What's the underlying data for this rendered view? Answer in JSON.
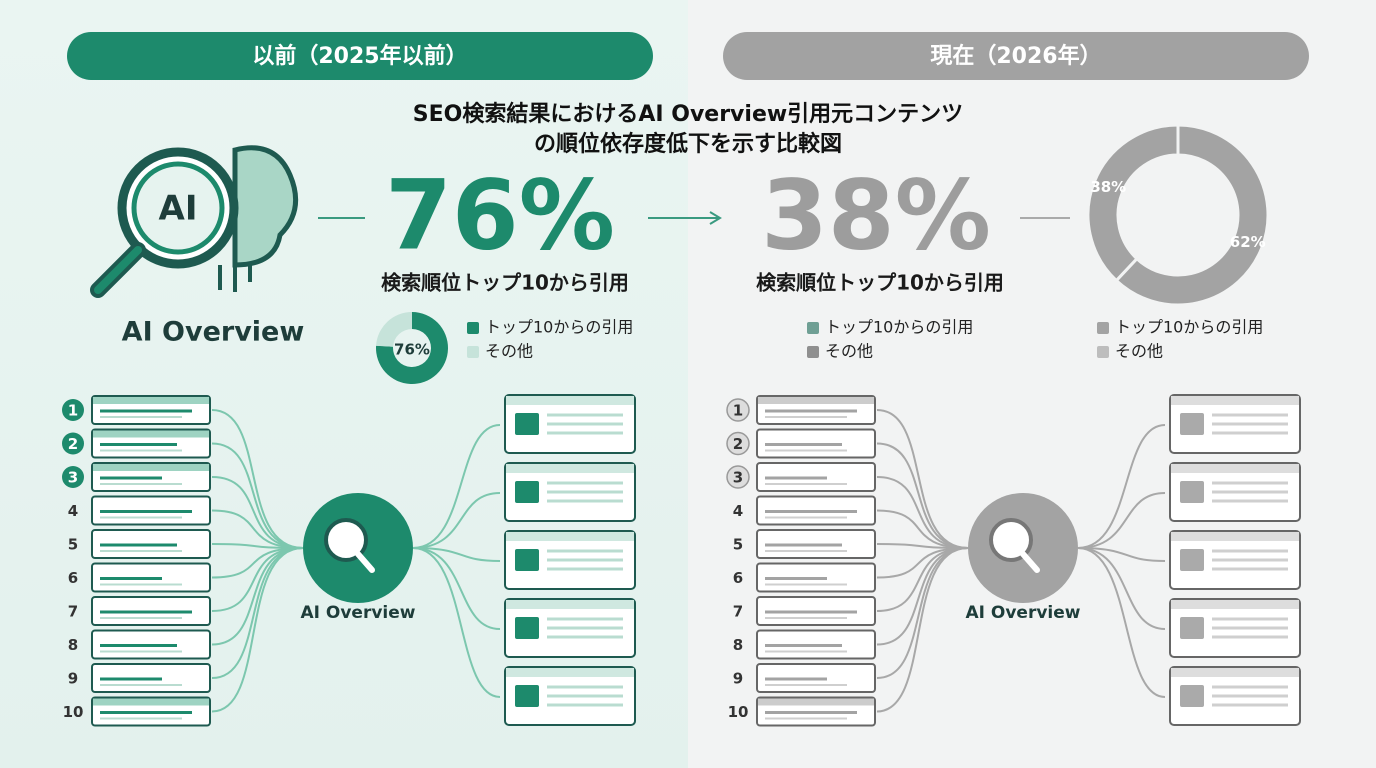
{
  "title": [
    "SEO検索結果におけるAI Overview引用元コンテンツ",
    "の順位依存度低下を示す比較図"
  ],
  "before": {
    "header": "以前（2025年以前）",
    "icon_label": "AI Overview",
    "headline": "76%",
    "caption": "検索順位トップ10から引用",
    "donut": {
      "center_label": "76%",
      "values": [
        76,
        24
      ],
      "colors": [
        "#1d8a6c",
        "#c6e3da"
      ]
    },
    "legend": [
      "トップ10からの引用",
      "その他"
    ],
    "ranks": [
      "1",
      "2",
      "3",
      "4",
      "5",
      "6",
      "7",
      "8",
      "9",
      "10"
    ],
    "hub_label": "AI Overview"
  },
  "after": {
    "header": "現在（2026年）",
    "headline": "38%",
    "caption": "検索順位トップ10から引用",
    "legend": [
      "トップ10からの引用",
      "その他"
    ],
    "legend_colors": [
      "#6f9f94",
      "#8f8f8f"
    ],
    "donut": {
      "values": [
        38,
        62
      ],
      "value_labels": [
        "38%",
        "62%"
      ],
      "colors": [
        "#a3a3a3",
        "#a3a3a3"
      ],
      "legend": [
        "トップ10からの引用",
        "その他"
      ],
      "legend_colors": [
        "#a3a3a3",
        "#bdbdbd"
      ]
    },
    "ranks": [
      "1",
      "2",
      "3",
      "4",
      "5",
      "6",
      "7",
      "8",
      "9",
      "10"
    ],
    "hub_label": "AI Overview"
  }
}
